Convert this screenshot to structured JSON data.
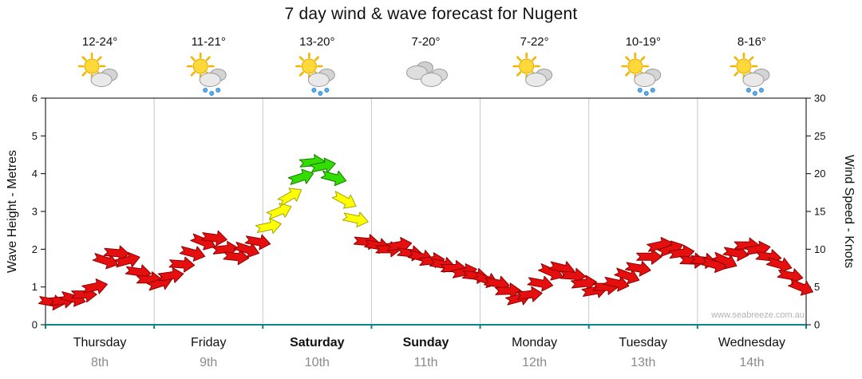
{
  "title": "7 day wind & wave forecast for Nugent",
  "watermark": "www.seabreeze.com.au",
  "axes": {
    "left_title": "Wave Height - Metres",
    "right_title": "Wind Speed - Knots",
    "left_ticks": [
      0,
      1,
      2,
      3,
      4,
      5,
      6
    ],
    "right_ticks": [
      0,
      5,
      10,
      15,
      20,
      25,
      30
    ]
  },
  "chart_data": {
    "type": "wind-arrow-series",
    "title": "7 day wind & wave forecast for Nugent",
    "axis_color": "#0e8585",
    "grid_color": "#c9c9c9",
    "days": [
      {
        "name": "Thursday",
        "date": "8th",
        "temp": "12-24°",
        "icon": "sun-cloud",
        "bold": false
      },
      {
        "name": "Friday",
        "date": "9th",
        "temp": "11-21°",
        "icon": "sun-cloud-rain",
        "bold": false
      },
      {
        "name": "Saturday",
        "date": "10th",
        "temp": "13-20°",
        "icon": "sun-cloud-rain",
        "bold": true
      },
      {
        "name": "Sunday",
        "date": "11th",
        "temp": "7-20°",
        "icon": "cloud",
        "bold": true
      },
      {
        "name": "Monday",
        "date": "12th",
        "temp": "7-22°",
        "icon": "sun-cloud",
        "bold": false
      },
      {
        "name": "Tuesday",
        "date": "13th",
        "temp": "10-19°",
        "icon": "sun-cloud-rain",
        "bold": false
      },
      {
        "name": "Wednesday",
        "date": "14th",
        "temp": "8-16°",
        "icon": "sun-cloud-rain",
        "bold": false
      }
    ],
    "points_per_day": 10,
    "ylim_left_metres": [
      0,
      6
    ],
    "ylim_right_knots": [
      0,
      30
    ],
    "speed_colors": {
      "red": "#e60f0f",
      "yellow": "#ffff00",
      "green": "#33dd00"
    },
    "stroke_colors": {
      "red": "#8e0000",
      "yellow": "#a3a300",
      "green": "#147a00"
    },
    "thresholds": {
      "yellow_min": 12.5,
      "green_min": 18.5
    },
    "wind_speed_knots": [
      3,
      3.2,
      3.5,
      4,
      5,
      8.5,
      9.5,
      8.5,
      7,
      6,
      5.5,
      6.5,
      8,
      9.5,
      11,
      11.5,
      10,
      9,
      10,
      11,
      13,
      15,
      17,
      19.5,
      21.5,
      21,
      19.5,
      16.5,
      14,
      11,
      10.5,
      10,
      10.5,
      9.5,
      9,
      8.5,
      8,
      7.5,
      7,
      6.5,
      6,
      5.5,
      4.5,
      3.5,
      4,
      5.5,
      7,
      7.5,
      6.5,
      5.5,
      4.5,
      5,
      5.5,
      6.5,
      7.5,
      9,
      10.5,
      10,
      9.5,
      8.5,
      8.5,
      8,
      8.5,
      9.5,
      10.5,
      10,
      9,
      8,
      6.5,
      5
    ],
    "wind_dir_deg": [
      10,
      -5,
      15,
      0,
      -12,
      18,
      5,
      -15,
      8,
      0,
      -18,
      -8,
      4,
      15,
      22,
      8,
      -6,
      6,
      18,
      10,
      -12,
      -22,
      -30,
      -18,
      -5,
      -12,
      15,
      28,
      12,
      5,
      10,
      0,
      -10,
      6,
      14,
      -6,
      10,
      0,
      -12,
      6,
      20,
      10,
      -2,
      -15,
      -6,
      10,
      24,
      14,
      4,
      -6,
      -10,
      0,
      12,
      20,
      10,
      0,
      -12,
      -20,
      -8,
      2,
      6,
      16,
      24,
      10,
      0,
      -10,
      6,
      16,
      10,
      22
    ]
  }
}
